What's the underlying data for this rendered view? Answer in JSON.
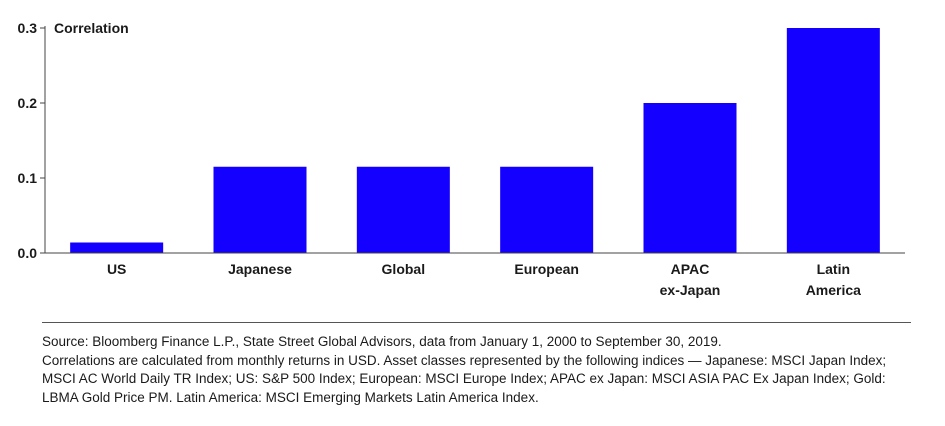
{
  "chart_data": {
    "type": "bar",
    "ylabel": "Correlation",
    "categories": [
      [
        "US"
      ],
      [
        "Japanese"
      ],
      [
        "Global"
      ],
      [
        "European"
      ],
      [
        "APAC",
        "ex-Japan"
      ],
      [
        "Latin",
        "America"
      ]
    ],
    "values": [
      0.014,
      0.115,
      0.115,
      0.115,
      0.2,
      0.3
    ],
    "ylim": [
      0,
      0.3
    ],
    "yticks": [
      "0.0",
      "0.1",
      "0.2",
      "0.3"
    ],
    "bar_color": "#1400ff",
    "grid": false
  },
  "footer": {
    "source_line": "Source: Bloomberg Finance L.P., State Street Global Advisors, data from January 1, 2000 to September 30, 2019.",
    "notes": "Correlations are calculated from monthly returns in USD. Asset classes represented by the following indices — Japanese: MSCI Japan Index; MSCI AC World Daily TR Index; US: S&P 500 Index; European: MSCI Europe Index; APAC ex Japan: MSCI ASIA PAC Ex Japan Index; Gold: LBMA Gold Price PM. Latin America: MSCI Emerging Markets Latin America Index."
  }
}
